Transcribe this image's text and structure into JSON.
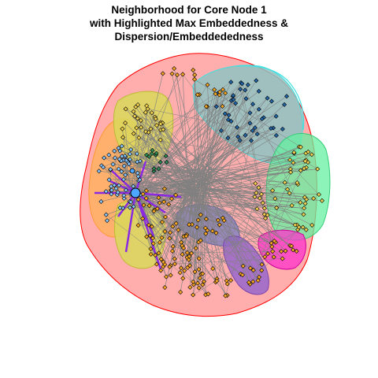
{
  "title": {
    "line1": "Neighborhood for Core Node 1",
    "line2": "with Highlighted Max Embeddedness &",
    "line3": "Dispersion/Embeddededness"
  },
  "colors": {
    "background": "#ffffff",
    "edge": "#808080",
    "hull_outline": "#ff0000",
    "node_stroke": "#000000",
    "highlight_edge": "#8a2be2",
    "groups": {
      "red_outer": "#ff9999",
      "teal": "#8fc3c3",
      "cyan": "#40e0e0",
      "green": "#66f0a0",
      "orange": "#ffb060",
      "yellow": "#d9d95a",
      "purple": "#9966cc",
      "magenta": "#ff33cc",
      "gray_blue": "#8080c0",
      "node_orange": "#f5a623",
      "node_yellow": "#f0d050",
      "node_blue": "#4a90e2",
      "node_lightblue": "#87c5ff",
      "node_darkblue": "#2266aa",
      "node_teal": "#2e8b57"
    }
  },
  "core_node": {
    "label": "1",
    "color": "#4da6ff"
  }
}
